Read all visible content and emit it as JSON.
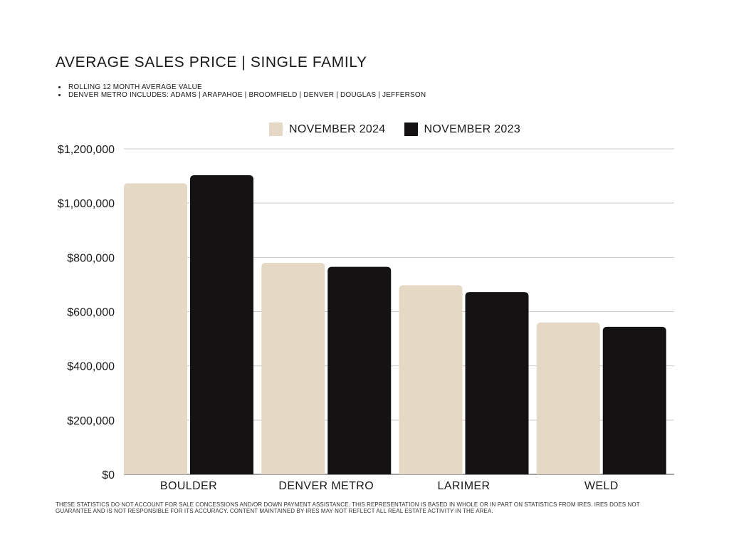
{
  "title": "AVERAGE SALES PRICE | SINGLE FAMILY",
  "notes": [
    "ROLLING 12 MONTH AVERAGE VALUE",
    "DENVER METRO INCLUDES: ADAMS | ARAPAHOE | BROOMFIELD | DENVER | DOUGLAS | JEFFERSON"
  ],
  "footnote": "THESE STATISTICS DO NOT ACCOUNT FOR SALE CONCESSIONS AND/OR DOWN PAYMENT ASSISTANCE. THIS REPRESENTATION IS BASED IN WHOLE OR IN PART ON STATISTICS FROM IRES. IRES DOES NOT GUARANTEE AND IS NOT RESPONSIBLE FOR ITS ACCURACY. CONTENT MAINTAINED BY IRES MAY NOT REFLECT ALL REAL ESTATE ACTIVITY IN THE AREA.",
  "colors": {
    "nov2024": "#e5d9c6",
    "nov2023": "#141213",
    "grid": "#cccccc"
  },
  "chart_data": {
    "type": "bar",
    "title": "AVERAGE SALES PRICE | SINGLE FAMILY",
    "categories": [
      "BOULDER",
      "DENVER METRO",
      "LARIMER",
      "WELD"
    ],
    "series": [
      {
        "name": "NOVEMBER 2024",
        "color": "#e5d9c6",
        "values": [
          1073000,
          780000,
          697000,
          560000
        ]
      },
      {
        "name": "NOVEMBER 2023",
        "color": "#141213",
        "values": [
          1103000,
          765000,
          672000,
          544000
        ]
      }
    ],
    "ylim": [
      0,
      1200000
    ],
    "yticks": [
      0,
      200000,
      400000,
      600000,
      800000,
      1000000,
      1200000
    ],
    "ytick_labels": [
      "$0",
      "$200,000",
      "$400,000",
      "$600,000",
      "$800,000",
      "$1,000,000",
      "$1,200,000"
    ],
    "xlabel": "",
    "ylabel": "",
    "grid": true,
    "legend": "top-center"
  }
}
